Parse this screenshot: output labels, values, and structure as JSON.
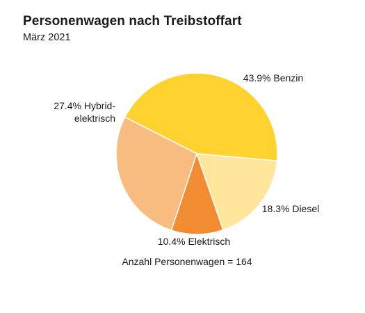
{
  "header": {
    "title": "Personenwagen nach Treibstoffart",
    "subtitle": "März 2021"
  },
  "chart_data": {
    "type": "pie",
    "title": "Personenwagen nach Treibstoffart",
    "subtitle": "März 2021",
    "slices": [
      {
        "label": "Benzin",
        "value_label": "43.9%",
        "value": 43.9,
        "color": "#FFD230"
      },
      {
        "label": "Diesel",
        "value_label": "18.3%",
        "value": 18.3,
        "color": "#FFE69C"
      },
      {
        "label": "Elektrisch",
        "value_label": "10.4%",
        "value": 10.4,
        "color": "#F28C33"
      },
      {
        "label": "Hybrid-elektrisch",
        "value_label": "27.4%",
        "value": 27.4,
        "color": "#F8BB80"
      }
    ],
    "label_lines": {
      "Benzin": [
        "43.9%  Benzin"
      ],
      "Diesel": [
        "18.3%  Diesel"
      ],
      "Elektrisch": [
        "10.4%  Elektrisch"
      ],
      "Hybrid-elektrisch": [
        "27.4% Hybrid-",
        "elektrisch"
      ]
    },
    "footnote": "Anzahl Personenwagen = 164"
  }
}
